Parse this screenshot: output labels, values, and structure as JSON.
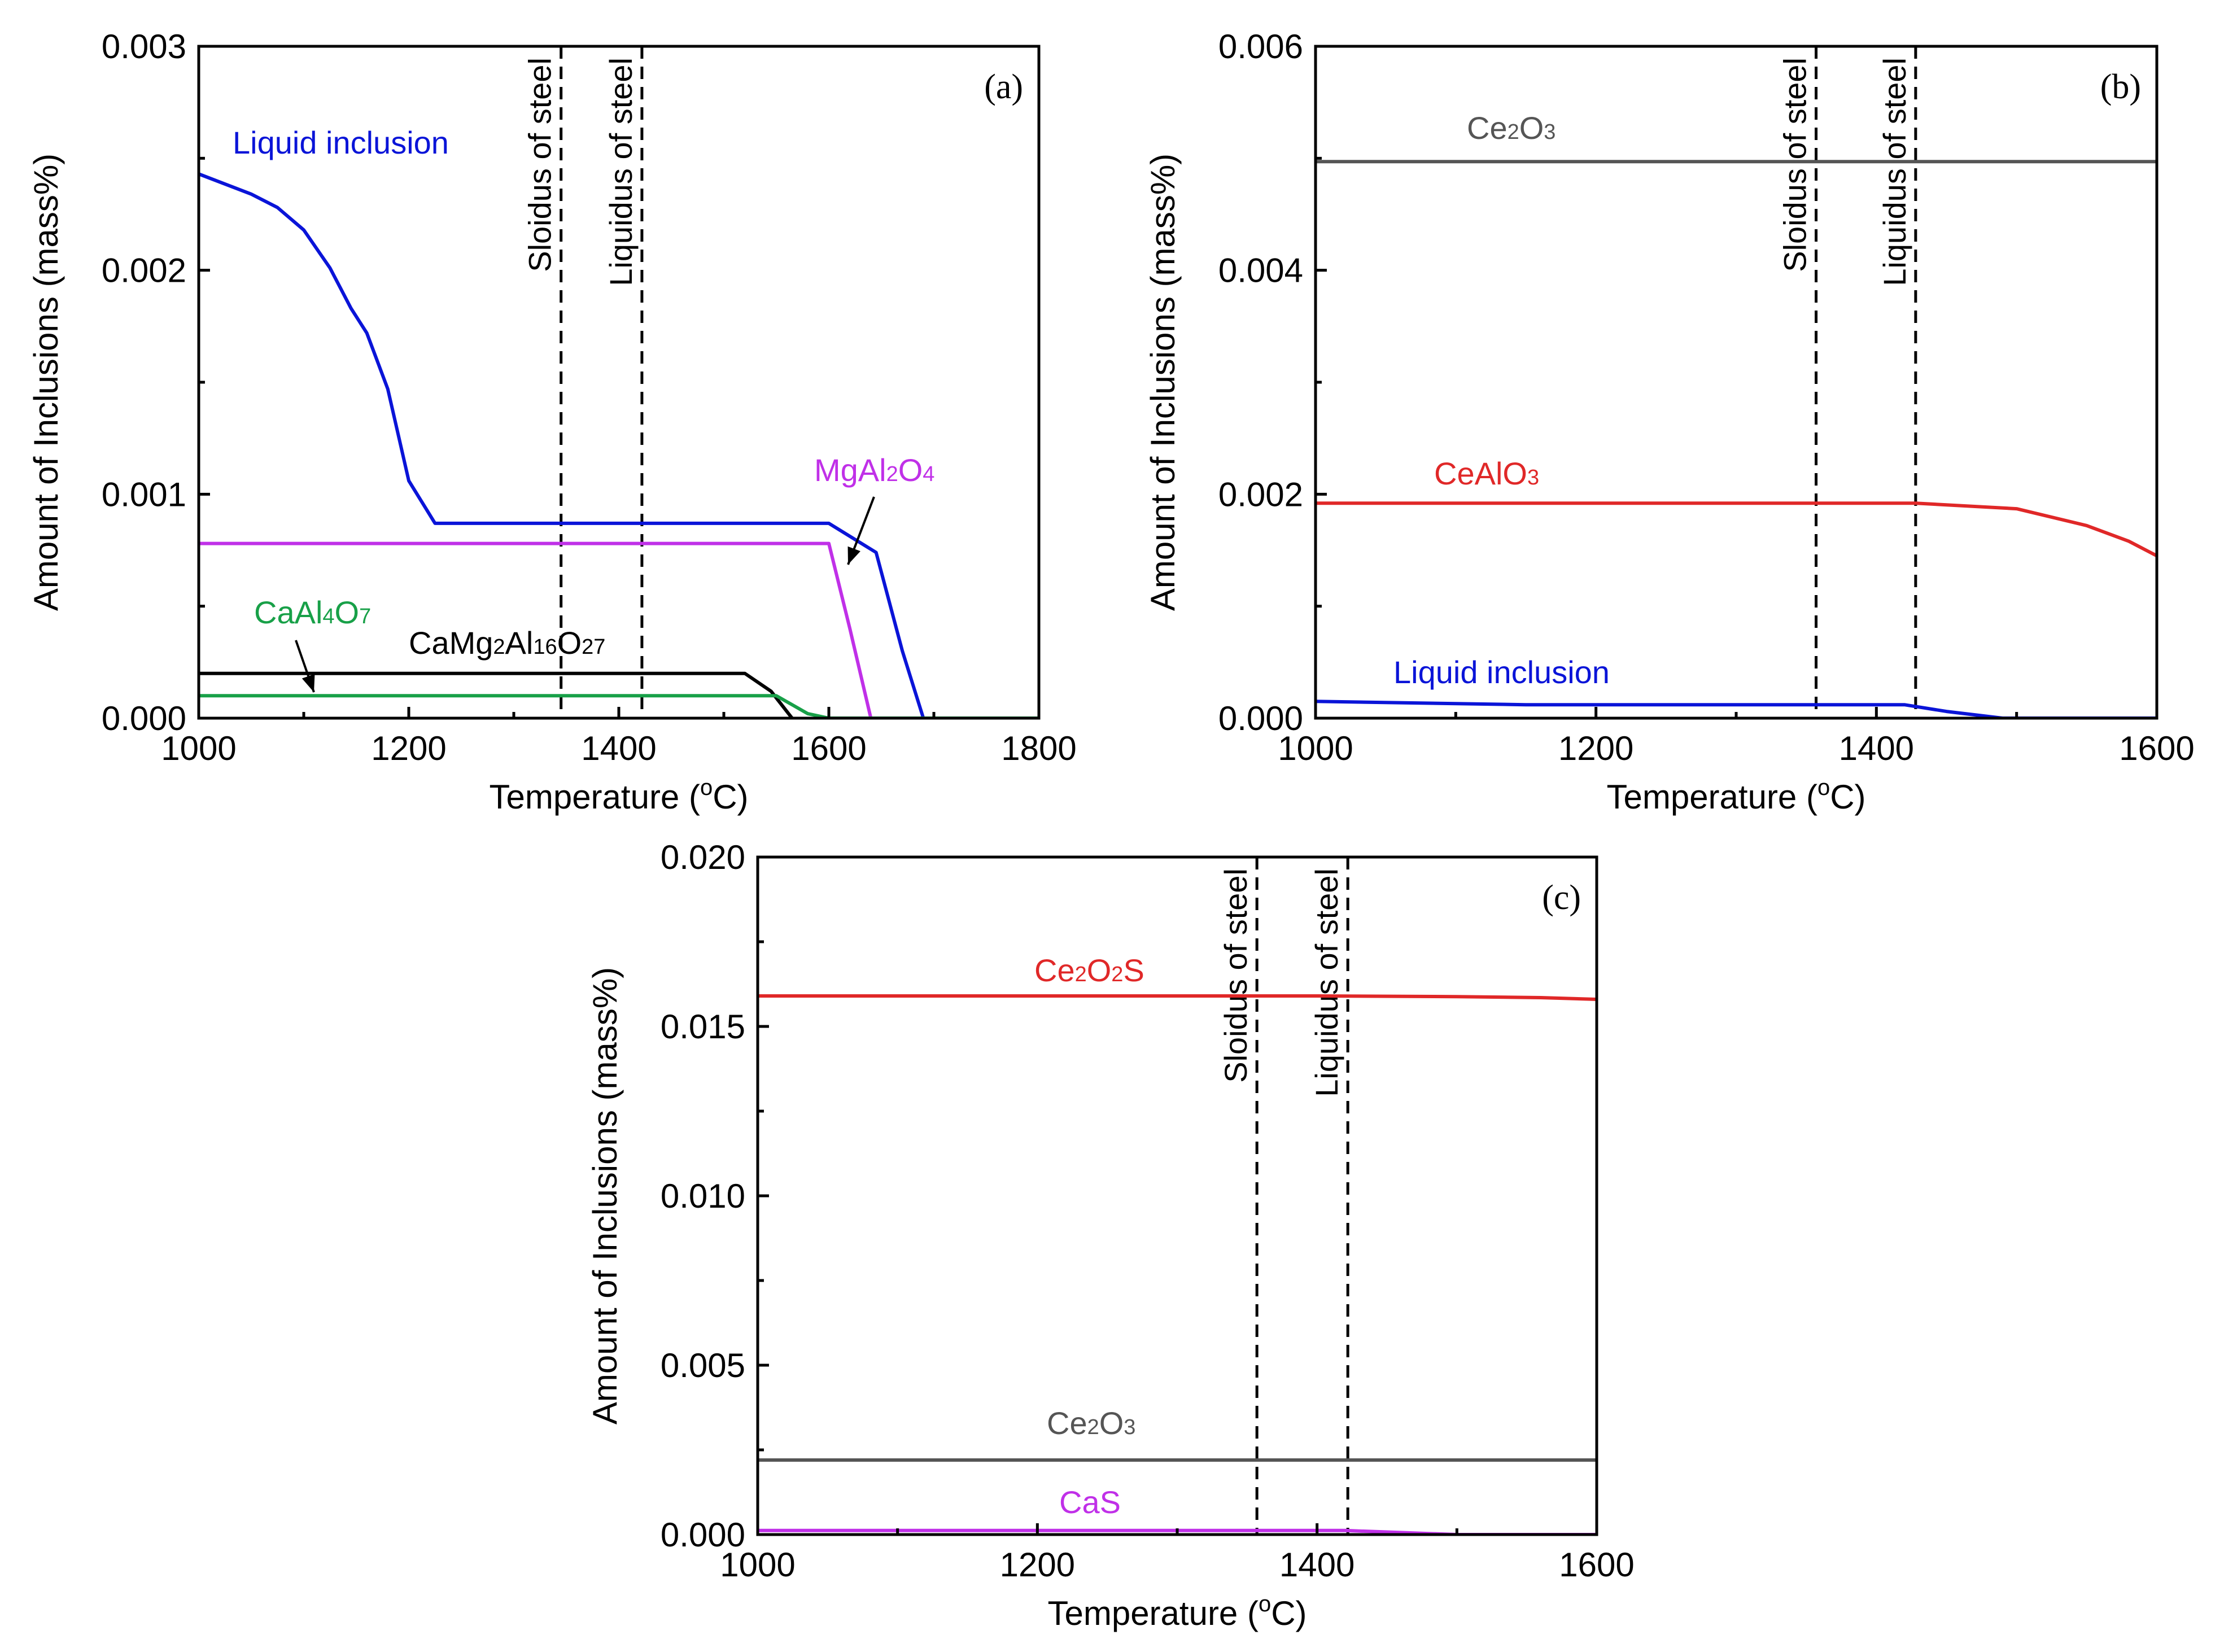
{
  "chart_data": [
    {
      "type": "line",
      "panel_label": "(a)",
      "xlabel": "Temperature (",
      "xlabel_sup": "o",
      "xlabel_unit": "C)",
      "ylabel": "Amount of Inclusions (mass%)",
      "xlim": [
        1000,
        1800
      ],
      "ylim": [
        0,
        0.003
      ],
      "xticks": [
        "1000",
        "1200",
        "1400",
        "1600",
        "1800"
      ],
      "yticks": [
        "0.000",
        "0.001",
        "0.002",
        "0.003"
      ],
      "vlines": [
        {
          "x": 1345,
          "label": "Sloidus of steel"
        },
        {
          "x": 1422,
          "label": "Liquidus of steel"
        }
      ],
      "series": [
        {
          "name": "Liquid inclusion",
          "label_main": "Liquid inclusion",
          "color": "#0a14d8",
          "x": [
            1000,
            1050,
            1075,
            1100,
            1125,
            1145,
            1160,
            1180,
            1200,
            1225,
            1300,
            1400,
            1500,
            1600,
            1645,
            1670,
            1690
          ],
          "y": [
            0.00243,
            0.00234,
            0.00228,
            0.00218,
            0.00201,
            0.00183,
            0.00172,
            0.00147,
            0.00106,
            0.00087,
            0.00087,
            0.00087,
            0.00087,
            0.00087,
            0.00074,
            0.0003,
            0.0
          ]
        },
        {
          "name": "MgAl2O4",
          "label_main": "MgAl",
          "label_sub1": "2",
          "label_mid": "O",
          "label_sub2": "4",
          "color": "#c030e8",
          "x": [
            1000,
            1200,
            1400,
            1600,
            1620,
            1640
          ],
          "y": [
            0.00078,
            0.00078,
            0.00078,
            0.00078,
            0.0004,
            0.0
          ]
        },
        {
          "name": "CaMg2Al16O27",
          "label_main": "CaMg",
          "label_sub1": "2",
          "label_mid": "Al",
          "label_sub2": "16",
          "label_mid2": "O",
          "label_sub3": "27",
          "color": "#000000",
          "x": [
            1000,
            1200,
            1400,
            1520,
            1545,
            1565
          ],
          "y": [
            0.0002,
            0.0002,
            0.0002,
            0.0002,
            0.00012,
            0.0
          ]
        },
        {
          "name": "CaAl4O7",
          "label_main": "CaAl",
          "label_sub1": "4",
          "label_mid": "O",
          "label_sub2": "7",
          "color": "#18a048",
          "x": [
            1000,
            1200,
            1400,
            1550,
            1580,
            1600,
            1700,
            1800
          ],
          "y": [
            0.0001,
            0.0001,
            0.0001,
            0.0001,
            2e-05,
            0.0,
            0.0,
            0.0
          ]
        }
      ]
    },
    {
      "type": "line",
      "panel_label": "(b)",
      "xlabel": "Temperature (",
      "xlabel_sup": "o",
      "xlabel_unit": "C)",
      "ylabel": "Amount of Inclusions (mass%)",
      "xlim": [
        1000,
        1600
      ],
      "ylim": [
        0,
        0.006
      ],
      "xticks": [
        "1000",
        "1200",
        "1400",
        "1600"
      ],
      "yticks": [
        "0.000",
        "0.002",
        "0.004",
        "0.006"
      ],
      "vlines": [
        {
          "x": 1357,
          "label": "Sloidus of steel"
        },
        {
          "x": 1428,
          "label": "Liquidus of steel"
        }
      ],
      "series": [
        {
          "name": "Ce2O3",
          "label_main": "Ce",
          "label_sub1": "2",
          "label_mid": "O",
          "label_sub2": "3",
          "color": "#555555",
          "x": [
            1000,
            1600
          ],
          "y": [
            0.00497,
            0.00497
          ]
        },
        {
          "name": "CeAlO3",
          "label_main": "CeAlO",
          "label_sub1": "3",
          "color": "#e02828",
          "x": [
            1000,
            1200,
            1428,
            1500,
            1550,
            1580,
            1600
          ],
          "y": [
            0.00192,
            0.00192,
            0.00192,
            0.00187,
            0.00172,
            0.00158,
            0.00145
          ]
        },
        {
          "name": "Liquid inclusion",
          "label_main": "Liquid inclusion",
          "color": "#0a14d8",
          "x": [
            1000,
            1150,
            1300,
            1420,
            1450,
            1490,
            1600
          ],
          "y": [
            0.00015,
            0.00012,
            0.00012,
            0.00012,
            6e-05,
            0.0,
            0.0
          ]
        }
      ]
    },
    {
      "type": "line",
      "panel_label": "(c)",
      "xlabel": "Temperature (",
      "xlabel_sup": "o",
      "xlabel_unit": "C)",
      "ylabel": "Amount of Inclusions (mass%)",
      "xlim": [
        1000,
        1600
      ],
      "ylim": [
        0,
        0.02
      ],
      "xticks": [
        "1000",
        "1200",
        "1400",
        "1600"
      ],
      "yticks": [
        "0.000",
        "0.005",
        "0.010",
        "0.015",
        "0.020"
      ],
      "vlines": [
        {
          "x": 1357,
          "label": "Sloidus of steel"
        },
        {
          "x": 1422,
          "label": "Liquidus of steel"
        }
      ],
      "series": [
        {
          "name": "Ce2O2S",
          "label_main": "Ce",
          "label_sub1": "2",
          "label_mid": "O",
          "label_sub2": "2",
          "label_mid2": "S",
          "color": "#e02828",
          "x": [
            1000,
            1400,
            1500,
            1560,
            1600
          ],
          "y": [
            0.0159,
            0.0159,
            0.01588,
            0.01585,
            0.0158
          ]
        },
        {
          "name": "Ce2O3",
          "label_main": "Ce",
          "label_sub1": "2",
          "label_mid": "O",
          "label_sub2": "3",
          "color": "#555555",
          "x": [
            1000,
            1600
          ],
          "y": [
            0.0022,
            0.0022
          ]
        },
        {
          "name": "CaS",
          "label_main": "CaS",
          "color": "#c030e8",
          "x": [
            1000,
            1420,
            1460,
            1500,
            1600
          ],
          "y": [
            0.00012,
            0.00012,
            6e-05,
            0.0,
            0.0
          ]
        }
      ]
    }
  ]
}
